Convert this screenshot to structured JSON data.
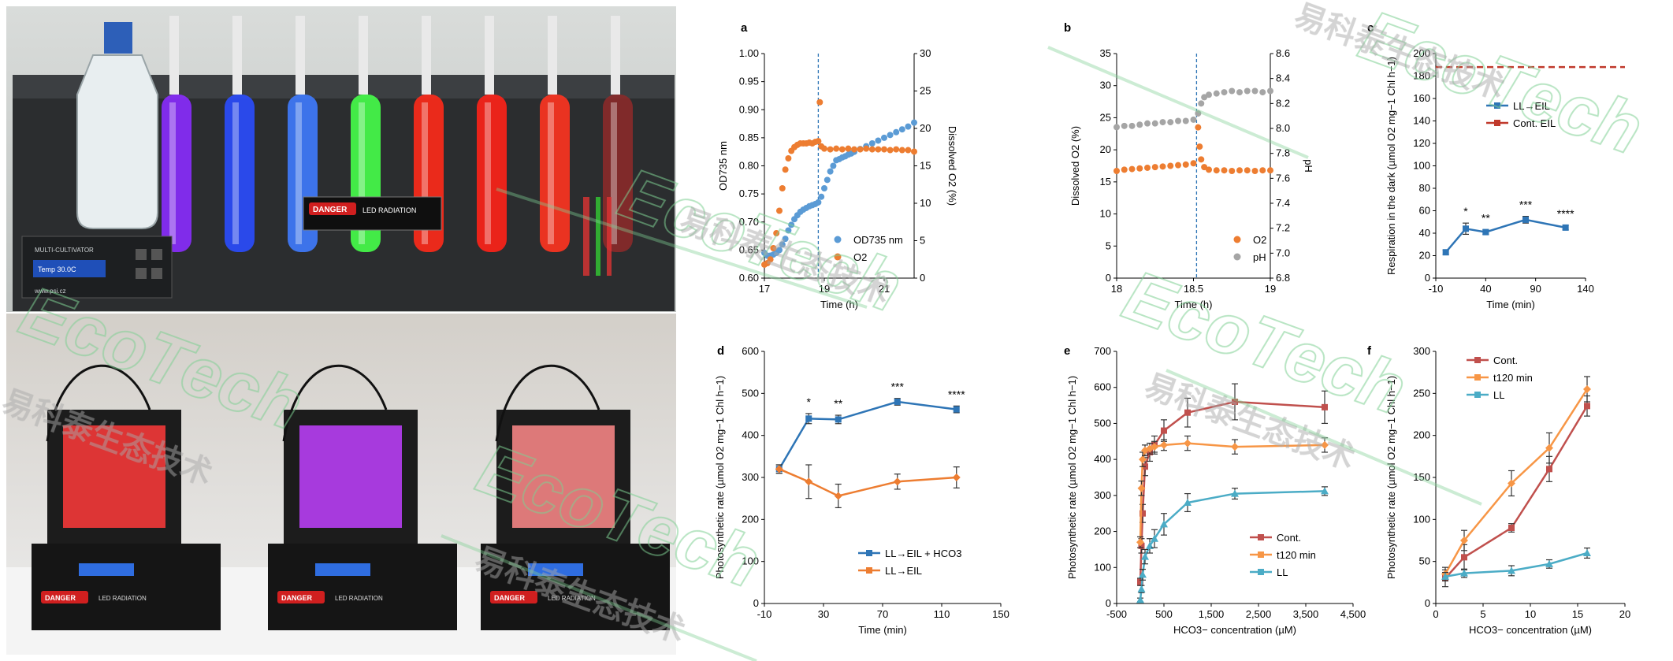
{
  "photos": {
    "top_device": {
      "panel_label": "MULTI-CULTIVATOR",
      "readout": "Temp 30.0C",
      "website": "www.psi.cz",
      "danger_label": "DANGER",
      "radiation_label": "LED RADIATION",
      "tube_colors": [
        "#8a2cff",
        "#2a4dff",
        "#3f7bff",
        "#46ff4a",
        "#ff2a1a",
        "#ff2218",
        "#ff3420",
        "#8a2a2a"
      ]
    },
    "bottom_devices": {
      "danger_label": "DANGER",
      "radiation_label": "LED RADIATION",
      "glow_colors": [
        "#ff3a3a",
        "#c040ff",
        "#ff8a8a"
      ]
    }
  },
  "watermark": {
    "brand": "EcoTech",
    "chinese": "易科泰生态技术",
    "registered": "®"
  },
  "chart_data": [
    {
      "id": "a",
      "panel": "a",
      "type": "scatter",
      "xlabel": "Time (h)",
      "ylabel_left": "OD735 nm",
      "ylabel_right": "Dissolved O2 (%)",
      "xlim": [
        17,
        22
      ],
      "xticks": [
        17,
        19,
        21
      ],
      "ylim_left": [
        0.6,
        1.0
      ],
      "yticks_left": [
        "0.60",
        "0.65",
        "0.70",
        "0.75",
        "0.80",
        "0.85",
        "0.90",
        "0.95",
        "1.00"
      ],
      "ylim_right": [
        0,
        30
      ],
      "yticks_right": [
        "0",
        "5",
        "10",
        "15",
        "20",
        "25",
        "30"
      ],
      "vline_x": 18.8,
      "legend": [
        "OD735 nm",
        "O2"
      ],
      "series": [
        {
          "name": "OD735 nm",
          "axis": "left",
          "color": "#5b9bd5",
          "x": [
            17.0,
            17.1,
            17.2,
            17.3,
            17.4,
            17.5,
            17.6,
            17.7,
            17.8,
            17.9,
            18.0,
            18.1,
            18.2,
            18.3,
            18.4,
            18.5,
            18.6,
            18.7,
            18.8,
            18.9,
            19.0,
            19.1,
            19.2,
            19.3,
            19.4,
            19.5,
            19.6,
            19.7,
            19.8,
            19.9,
            20.0,
            20.2,
            20.4,
            20.6,
            20.8,
            21.0,
            21.2,
            21.4,
            21.6,
            21.8,
            22.0
          ],
          "y": [
            0.645,
            0.64,
            0.64,
            0.642,
            0.645,
            0.65,
            0.66,
            0.67,
            0.685,
            0.695,
            0.705,
            0.712,
            0.718,
            0.722,
            0.725,
            0.728,
            0.73,
            0.732,
            0.735,
            0.745,
            0.76,
            0.775,
            0.79,
            0.8,
            0.81,
            0.812,
            0.815,
            0.817,
            0.82,
            0.822,
            0.825,
            0.83,
            0.835,
            0.84,
            0.845,
            0.85,
            0.855,
            0.86,
            0.865,
            0.87,
            0.877
          ]
        },
        {
          "name": "O2",
          "axis": "right",
          "color": "#ed7d31",
          "x": [
            17.0,
            17.1,
            17.2,
            17.3,
            17.4,
            17.5,
            17.6,
            17.7,
            17.8,
            17.9,
            18.0,
            18.1,
            18.2,
            18.3,
            18.4,
            18.5,
            18.6,
            18.7,
            18.8,
            18.85,
            18.9,
            19.0,
            19.2,
            19.4,
            19.6,
            19.8,
            20.0,
            20.2,
            20.4,
            20.6,
            20.8,
            21.0,
            21.2,
            21.4,
            21.6,
            21.8,
            22.0
          ],
          "y": [
            1.8,
            2.0,
            2.5,
            4.0,
            6.0,
            9.0,
            12.0,
            14.5,
            16.0,
            17.0,
            17.5,
            17.8,
            18.0,
            18.0,
            18.0,
            18.1,
            18.0,
            18.2,
            18.3,
            23.5,
            17.6,
            17.3,
            17.2,
            17.3,
            17.2,
            17.3,
            17.2,
            17.2,
            17.3,
            17.2,
            17.2,
            17.2,
            17.1,
            17.2,
            17.1,
            17.1,
            16.9
          ]
        }
      ]
    },
    {
      "id": "b",
      "panel": "b",
      "type": "scatter",
      "xlabel": "Time (h)",
      "ylabel_left": "Dissolved O2 (%)",
      "ylabel_right": "pH",
      "xlim": [
        18,
        19
      ],
      "xticks": [
        "18",
        "18.5",
        "19"
      ],
      "ylim_left": [
        0,
        35
      ],
      "yticks_left": [
        "0",
        "5",
        "10",
        "15",
        "20",
        "25",
        "30",
        "35"
      ],
      "ylim_right": [
        6.8,
        8.6
      ],
      "yticks_right": [
        "6.8",
        "7.0",
        "7.2",
        "7.4",
        "7.6",
        "7.8",
        "8.0",
        "8.2",
        "8.4",
        "8.6"
      ],
      "vline_x": 18.52,
      "legend": [
        "O2",
        "pH"
      ],
      "series": [
        {
          "name": "O2",
          "axis": "left",
          "color": "#ed7d31",
          "x": [
            18.0,
            18.05,
            18.1,
            18.15,
            18.2,
            18.25,
            18.3,
            18.35,
            18.4,
            18.45,
            18.5,
            18.53,
            18.54,
            18.55,
            18.57,
            18.6,
            18.65,
            18.7,
            18.75,
            18.8,
            18.85,
            18.9,
            18.95,
            19.0
          ],
          "y": [
            16.7,
            16.9,
            17.0,
            17.1,
            17.2,
            17.3,
            17.4,
            17.5,
            17.6,
            17.7,
            17.9,
            23.5,
            20.5,
            18.5,
            17.3,
            16.9,
            16.8,
            16.8,
            16.7,
            16.8,
            16.8,
            16.7,
            16.8,
            16.8
          ]
        },
        {
          "name": "pH",
          "axis": "right",
          "color": "#a5a5a5",
          "x": [
            18.0,
            18.05,
            18.1,
            18.15,
            18.2,
            18.25,
            18.3,
            18.35,
            18.4,
            18.45,
            18.5,
            18.53,
            18.55,
            18.57,
            18.6,
            18.65,
            18.7,
            18.75,
            18.8,
            18.85,
            18.9,
            18.95,
            19.0
          ],
          "y": [
            8.01,
            8.02,
            8.02,
            8.03,
            8.04,
            8.04,
            8.05,
            8.05,
            8.06,
            8.06,
            8.07,
            8.12,
            8.2,
            8.25,
            8.27,
            8.28,
            8.29,
            8.3,
            8.29,
            8.3,
            8.3,
            8.29,
            8.3
          ]
        }
      ]
    },
    {
      "id": "c",
      "panel": "c",
      "type": "line",
      "xlabel": "Time (min)",
      "ylabel": "Respiration in the dark (µmol O2 mg−1 Chl h−1)",
      "xlim": [
        -10,
        140
      ],
      "xticks": [
        "-10",
        "40",
        "90",
        "140"
      ],
      "ylim": [
        0,
        200
      ],
      "yticks": [
        "0",
        "20",
        "40",
        "60",
        "80",
        "100",
        "120",
        "140",
        "160",
        "180",
        "200"
      ],
      "legend": [
        "LL→EIL",
        "Cont. EIL"
      ],
      "hline": {
        "name": "Cont. EIL",
        "y": 188,
        "color": "#c0392b"
      },
      "series": [
        {
          "name": "LL→EIL",
          "color": "#2e75b6",
          "x": [
            0,
            20,
            40,
            80,
            120
          ],
          "y": [
            23,
            44,
            41,
            52,
            45
          ],
          "err": [
            2,
            5,
            2,
            3,
            2
          ],
          "sig": [
            "",
            "*",
            "**",
            "***",
            "****"
          ]
        }
      ]
    },
    {
      "id": "d",
      "panel": "d",
      "type": "line",
      "xlabel": "Time (min)",
      "ylabel": "Photosynthetic rate (µmol O2 mg−1 Chl h−1)",
      "xlim": [
        -10,
        150
      ],
      "xticks": [
        "-10",
        "30",
        "70",
        "110",
        "150"
      ],
      "ylim": [
        0,
        600
      ],
      "yticks": [
        "0",
        "100",
        "200",
        "300",
        "400",
        "500",
        "600"
      ],
      "legend": [
        "LL→EIL + HCO3",
        "LL→EIL"
      ],
      "series": [
        {
          "name": "LL→EIL + HCO3",
          "color": "#2e75b6",
          "x": [
            0,
            20,
            40,
            80,
            120
          ],
          "y": [
            320,
            440,
            438,
            480,
            462
          ],
          "err": [
            10,
            12,
            10,
            8,
            8
          ],
          "sig": [
            "",
            "*",
            "**",
            "***",
            "****"
          ]
        },
        {
          "name": "LL→EIL",
          "color": "#ed7d31",
          "x": [
            0,
            20,
            40,
            80,
            120
          ],
          "y": [
            320,
            290,
            256,
            290,
            300
          ],
          "err": [
            10,
            40,
            28,
            18,
            25
          ]
        }
      ]
    },
    {
      "id": "e",
      "panel": "e",
      "type": "line",
      "xlabel": "HCO3− concentration (µM)",
      "ylabel": "Photosynthetic rate (µmol O2 mg−1 Chl h−1)",
      "xlim": [
        -500,
        4500
      ],
      "xticks": [
        "-500",
        "500",
        "1,500",
        "2,500",
        "3,500",
        "4,500"
      ],
      "ylim": [
        0,
        700
      ],
      "yticks": [
        "0",
        "100",
        "200",
        "300",
        "400",
        "500",
        "600",
        "700"
      ],
      "legend": [
        "Cont.",
        "t120 min",
        "LL"
      ],
      "series": [
        {
          "name": "Cont.",
          "color": "#c0504d",
          "x": [
            0,
            25,
            50,
            100,
            200,
            300,
            500,
            1000,
            2000,
            3900
          ],
          "y": [
            60,
            160,
            250,
            380,
            420,
            440,
            480,
            530,
            560,
            545
          ],
          "err": [
            10,
            20,
            25,
            25,
            25,
            25,
            30,
            40,
            50,
            45
          ]
        },
        {
          "name": "t120 min",
          "color": "#f79646",
          "x": [
            0,
            25,
            50,
            100,
            200,
            300,
            500,
            1000,
            2000,
            3900
          ],
          "y": [
            170,
            320,
            400,
            425,
            430,
            435,
            440,
            445,
            435,
            440
          ],
          "err": [
            15,
            20,
            20,
            15,
            15,
            15,
            15,
            20,
            20,
            20
          ]
        },
        {
          "name": "LL",
          "color": "#4bacc6",
          "x": [
            0,
            25,
            50,
            100,
            200,
            300,
            500,
            1000,
            2000,
            3900
          ],
          "y": [
            10,
            40,
            80,
            130,
            160,
            180,
            220,
            280,
            305,
            312
          ],
          "err": [
            5,
            10,
            15,
            20,
            20,
            25,
            30,
            25,
            15,
            12
          ]
        }
      ]
    },
    {
      "id": "f",
      "panel": "f",
      "type": "line",
      "xlabel": "HCO3− concentration (µM)",
      "ylabel": "Photosynthetic rate (µmol O2 mg−1 Chl h−1)",
      "xlim": [
        0,
        20
      ],
      "xticks": [
        "0",
        "5",
        "10",
        "15",
        "20"
      ],
      "ylim": [
        0,
        300
      ],
      "yticks": [
        "0",
        "50",
        "100",
        "150",
        "200",
        "250",
        "300"
      ],
      "legend": [
        "Cont.",
        "t120 min",
        "LL"
      ],
      "series": [
        {
          "name": "Cont.",
          "color": "#c0504d",
          "x": [
            1,
            3,
            8,
            12,
            16
          ],
          "y": [
            30,
            55,
            90,
            160,
            235
          ],
          "err": [
            10,
            15,
            5,
            15,
            12
          ]
        },
        {
          "name": "t120 min",
          "color": "#f79646",
          "x": [
            1,
            3,
            8,
            12,
            16
          ],
          "y": [
            35,
            75,
            143,
            185,
            255
          ],
          "err": [
            8,
            12,
            15,
            18,
            15
          ]
        },
        {
          "name": "LL",
          "color": "#4bacc6",
          "x": [
            1,
            3,
            8,
            12,
            16
          ],
          "y": [
            32,
            36,
            39,
            47,
            60
          ],
          "err": [
            5,
            5,
            6,
            5,
            6
          ]
        }
      ]
    }
  ]
}
